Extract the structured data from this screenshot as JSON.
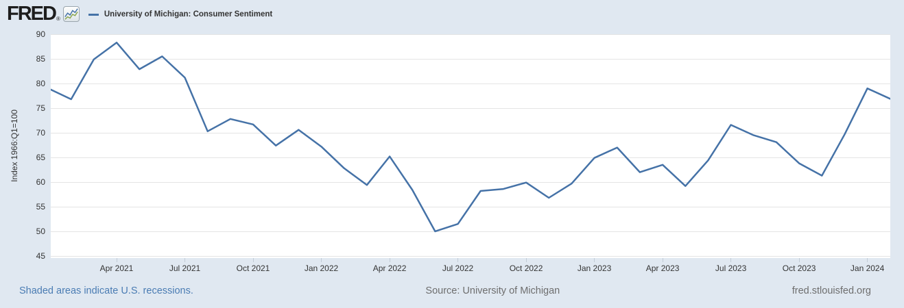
{
  "header": {
    "logo_text": "FRED",
    "logo_registered": "®",
    "legend": {
      "label": "University of Michigan: Consumer Sentiment",
      "line_color": "#4572a7"
    }
  },
  "chart_data": {
    "type": "line",
    "title": "University of Michigan: Consumer Sentiment",
    "ylabel": "Index 1966:Q1=100",
    "xlabel": "",
    "grid": "horizontal",
    "legend_position": "top-left",
    "line_color": "#4572a7",
    "ylim": [
      45,
      90
    ],
    "y_ticks": [
      90,
      85,
      80,
      75,
      70,
      65,
      60,
      55,
      50,
      45
    ],
    "x": [
      "Jan 2021",
      "Feb 2021",
      "Mar 2021",
      "Apr 2021",
      "May 2021",
      "Jun 2021",
      "Jul 2021",
      "Aug 2021",
      "Sep 2021",
      "Oct 2021",
      "Nov 2021",
      "Dec 2021",
      "Jan 2022",
      "Feb 2022",
      "Mar 2022",
      "Apr 2022",
      "May 2022",
      "Jun 2022",
      "Jul 2022",
      "Aug 2022",
      "Sep 2022",
      "Oct 2022",
      "Nov 2022",
      "Dec 2022",
      "Jan 2023",
      "Feb 2023",
      "Mar 2023",
      "Apr 2023",
      "May 2023",
      "Jun 2023",
      "Jul 2023",
      "Aug 2023",
      "Sep 2023",
      "Oct 2023",
      "Nov 2023",
      "Dec 2023",
      "Jan 2024",
      "Feb 2024"
    ],
    "values": [
      79.0,
      76.8,
      84.9,
      88.3,
      82.9,
      85.5,
      81.2,
      70.3,
      72.8,
      71.7,
      67.4,
      70.6,
      67.2,
      62.8,
      59.4,
      65.2,
      58.4,
      50.0,
      51.5,
      58.2,
      58.6,
      59.9,
      56.8,
      59.7,
      64.9,
      67.0,
      62.0,
      63.5,
      59.2,
      64.4,
      71.6,
      69.5,
      68.1,
      63.8,
      61.3,
      69.7,
      79.0,
      76.9
    ],
    "x_tick_indices": [
      3,
      6,
      9,
      12,
      15,
      18,
      21,
      24,
      27,
      30,
      33,
      36
    ],
    "x_tick_labels": [
      "Apr 2021",
      "Jul 2021",
      "Oct 2021",
      "Jan 2022",
      "Apr 2022",
      "Jul 2022",
      "Oct 2022",
      "Jan 2023",
      "Apr 2023",
      "Jul 2023",
      "Oct 2023",
      "Jan 2024"
    ]
  },
  "footer": {
    "recessions_note": "Shaded areas indicate U.S. recessions.",
    "source": "Source: University of Michigan",
    "site": "fred.stlouisfed.org"
  }
}
